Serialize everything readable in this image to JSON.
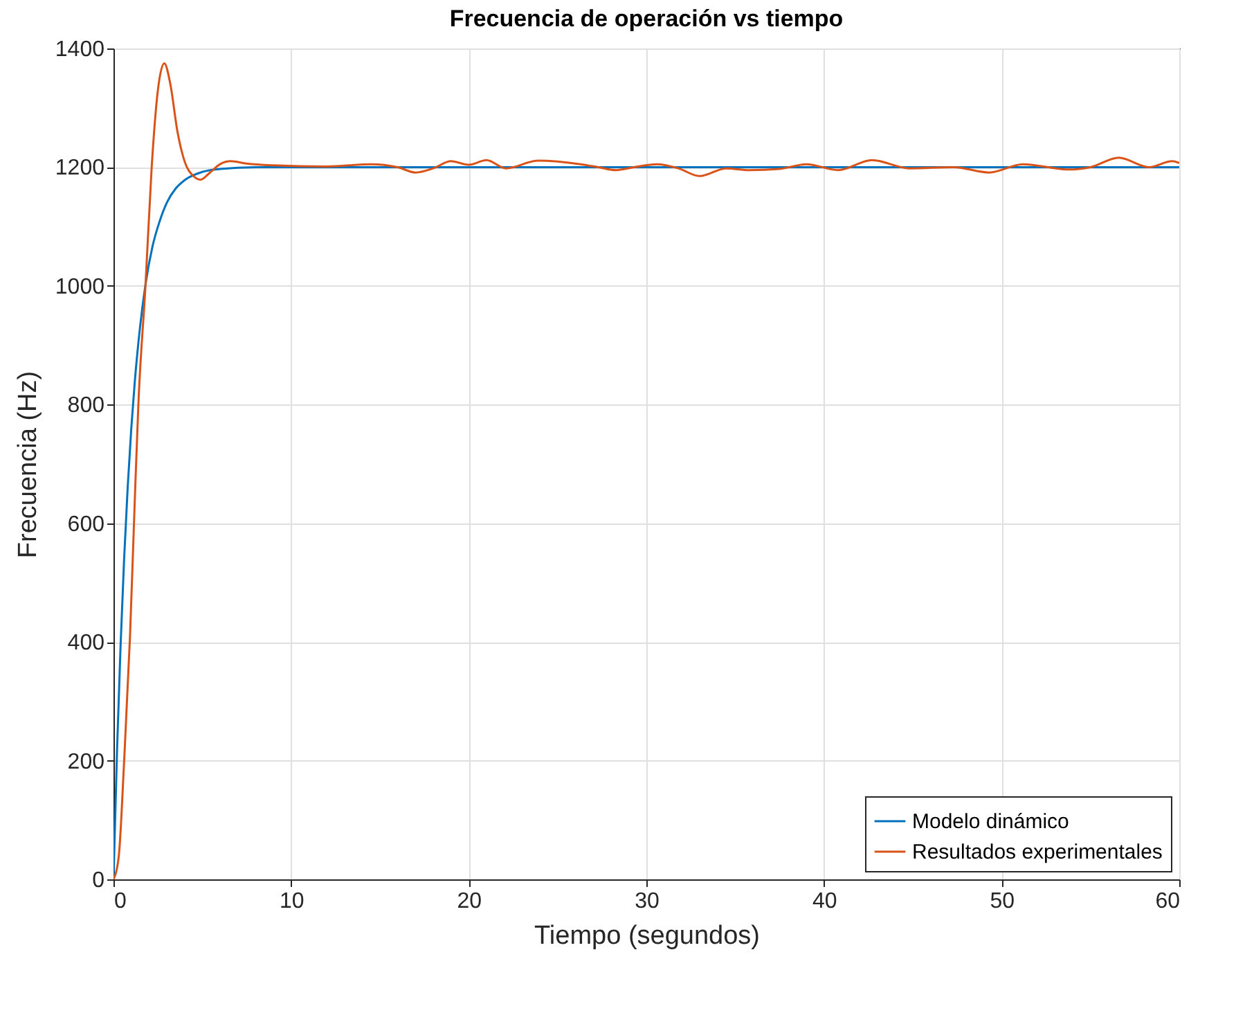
{
  "chart_data": {
    "type": "line",
    "title": "Frecuencia de operación vs tiempo",
    "xlabel": "Tiempo (segundos)",
    "ylabel": "Frecuencia (Hz)",
    "xlim": [
      0,
      60
    ],
    "xticks": [
      0,
      10,
      20,
      30,
      40,
      50,
      60
    ],
    "ylim": [
      0,
      1400
    ],
    "yticks": [
      0,
      200,
      400,
      600,
      800,
      1000,
      1200,
      1400
    ],
    "grid": true,
    "legend": "bottom right",
    "line_style": "solid",
    "series": [
      {
        "name": "Modelo dinámico",
        "color": "#0072bd",
        "x": [
          0,
          0.2,
          0.4,
          0.6,
          0.8,
          1,
          1.2,
          1.5,
          1.8,
          2.2,
          2.6,
          3,
          3.5,
          4,
          5,
          6,
          8,
          60
        ],
        "values": [
          0,
          218,
          395,
          541,
          661,
          759,
          839,
          932,
          1002,
          1067,
          1109,
          1140,
          1164,
          1178,
          1192,
          1197,
          1200,
          1200
        ]
      },
      {
        "name": "Resultados experimentales",
        "color": "#d95319",
        "x": [
          0,
          0.3,
          0.6,
          0.93,
          1.2,
          1.4,
          1.8,
          2.15,
          2.5,
          2.86,
          3.2,
          3.6,
          4,
          4.5,
          4.9,
          5.4,
          6,
          6.6,
          7.5,
          9,
          12,
          14.5,
          16,
          17,
          18,
          19,
          20,
          21,
          22.1,
          23.9,
          26.3,
          27.3,
          28.3,
          29.3,
          30.6,
          31.8,
          33,
          34.5,
          35.8,
          37.5,
          39,
          40.8,
          42.7,
          44.8,
          47.3,
          49.3,
          51.2,
          53.8,
          55,
          56.6,
          58.3,
          59.6,
          60
        ],
        "values": [
          0,
          40,
          200,
          410,
          640,
          800,
          1000,
          1200,
          1330,
          1375,
          1340,
          1260,
          1210,
          1185,
          1179,
          1190,
          1205,
          1210,
          1206,
          1203,
          1201,
          1205,
          1200,
          1191,
          1198,
          1210,
          1204,
          1212,
          1198,
          1211,
          1205,
          1200,
          1195,
          1200,
          1205,
          1198,
          1185,
          1198,
          1195,
          1197,
          1205,
          1195,
          1212,
          1198,
          1200,
          1191,
          1205,
          1196,
          1200,
          1216,
          1200,
          1210,
          1207
        ]
      }
    ]
  }
}
